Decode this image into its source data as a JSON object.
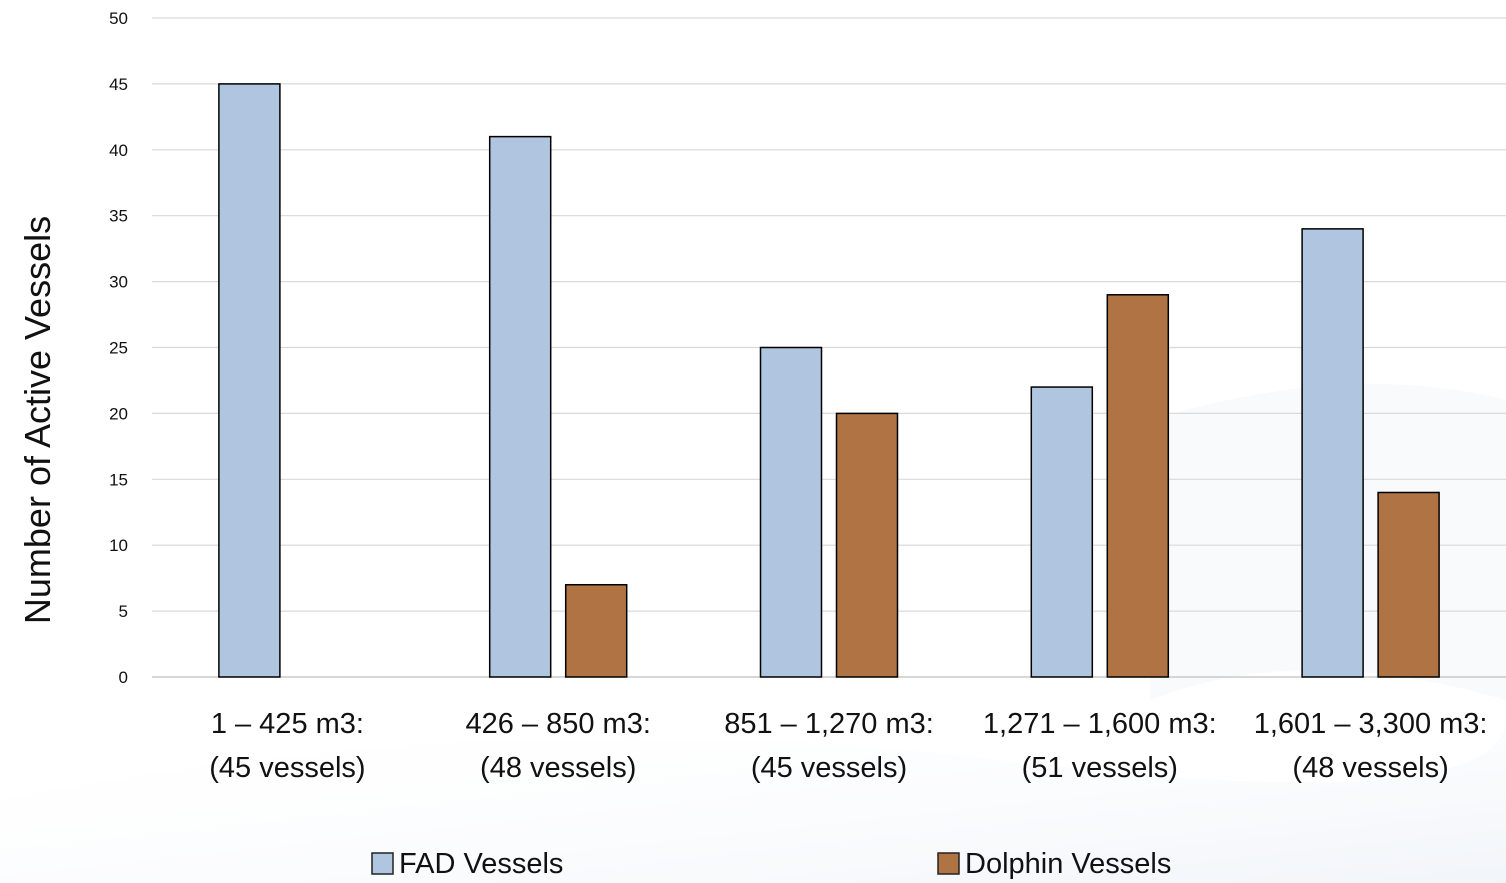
{
  "chart_data": {
    "type": "bar",
    "title": "",
    "xlabel": "",
    "ylabel": "Number of Active Vessels",
    "ylim": [
      0,
      50
    ],
    "ytick_step": 5,
    "grid": true,
    "legend_position": "bottom",
    "categories": [
      [
        "1 – 425 m3:",
        "(45 vessels)"
      ],
      [
        "426 – 850 m3:",
        "(48 vessels)"
      ],
      [
        "851 – 1,270 m3:",
        "(45 vessels)"
      ],
      [
        "1,271 – 1,600 m3:",
        "(51 vessels)"
      ],
      [
        "1,601 – 3,300 m3:",
        "(48 vessels)"
      ]
    ],
    "series": [
      {
        "name": "FAD Vessels",
        "color": "#B0C6E0",
        "values": [
          45,
          41,
          25,
          22,
          34
        ]
      },
      {
        "name": "Dolphin Vessels",
        "color": "#B07444",
        "values": [
          0,
          7,
          20,
          29,
          14
        ]
      }
    ]
  }
}
